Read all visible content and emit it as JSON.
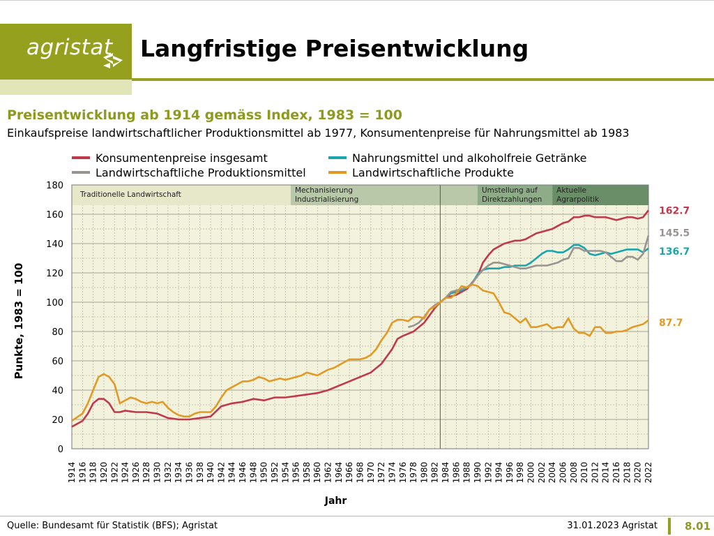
{
  "brand": {
    "name": "agristat",
    "color": "#95a01f"
  },
  "header": {
    "title": "Langfristige Preisentwicklung",
    "subtitle": "Preisentwicklung ab 1914 gemäss Index, 1983 = 100",
    "subtitle2": "Einkaufspreise landwirtschaftlicher Produktionsmittel ab 1977, Konsumentenpreise für Nahrungsmittel ab 1983"
  },
  "footer": {
    "source": "Quelle: Bundesamt für Statistik (BFS); Agristat",
    "date": "31.01.2023 Agristat",
    "page": "8.01"
  },
  "chart_data": {
    "type": "line",
    "xlabel": "Jahr",
    "ylabel": "Punkte, 1983 = 100",
    "xlim": [
      1914,
      2022
    ],
    "ylim": [
      0,
      180
    ],
    "yticks": [
      0,
      20,
      40,
      60,
      80,
      100,
      120,
      140,
      160,
      180
    ],
    "grid": true,
    "legend_position": "top",
    "reference_year": 1983,
    "periods": [
      {
        "label": "Traditionelle Landwirtschaft",
        "start": 1914,
        "end": 1955,
        "color": "#e6e8c9"
      },
      {
        "label": "Mechanisierung Industrialisierung",
        "start": 1955,
        "end": 1990,
        "color": "#b8c8a8"
      },
      {
        "label": "Umstellung auf Direktzahlungen",
        "start": 1990,
        "end": 2004,
        "color": "#8fac88"
      },
      {
        "label": "Aktuelle Agrarpolitik",
        "start": 2004,
        "end": 2022,
        "color": "#6a8f68"
      }
    ],
    "series": [
      {
        "name": "Konsumentenpreise insgesamt",
        "color": "#c0394b",
        "end_label": "162.7",
        "points": [
          [
            1914,
            15
          ],
          [
            1916,
            19
          ],
          [
            1917,
            24
          ],
          [
            1918,
            31
          ],
          [
            1919,
            34
          ],
          [
            1920,
            34
          ],
          [
            1921,
            31
          ],
          [
            1922,
            25
          ],
          [
            1923,
            25
          ],
          [
            1924,
            26
          ],
          [
            1926,
            25
          ],
          [
            1928,
            25
          ],
          [
            1930,
            24
          ],
          [
            1932,
            21
          ],
          [
            1934,
            20
          ],
          [
            1936,
            20
          ],
          [
            1938,
            21
          ],
          [
            1940,
            22
          ],
          [
            1942,
            29
          ],
          [
            1944,
            31
          ],
          [
            1946,
            32
          ],
          [
            1948,
            34
          ],
          [
            1950,
            33
          ],
          [
            1952,
            35
          ],
          [
            1954,
            35
          ],
          [
            1956,
            36
          ],
          [
            1958,
            37
          ],
          [
            1960,
            38
          ],
          [
            1962,
            40
          ],
          [
            1964,
            43
          ],
          [
            1966,
            46
          ],
          [
            1968,
            49
          ],
          [
            1970,
            52
          ],
          [
            1972,
            58
          ],
          [
            1974,
            68
          ],
          [
            1975,
            75
          ],
          [
            1976,
            77
          ],
          [
            1978,
            80
          ],
          [
            1980,
            86
          ],
          [
            1982,
            96
          ],
          [
            1983,
            100
          ],
          [
            1984,
            103
          ],
          [
            1986,
            105
          ],
          [
            1988,
            109
          ],
          [
            1990,
            118
          ],
          [
            1991,
            127
          ],
          [
            1992,
            132
          ],
          [
            1993,
            136
          ],
          [
            1994,
            138
          ],
          [
            1995,
            140
          ],
          [
            1996,
            141
          ],
          [
            1997,
            142
          ],
          [
            1998,
            142
          ],
          [
            1999,
            143
          ],
          [
            2000,
            145
          ],
          [
            2001,
            147
          ],
          [
            2002,
            148
          ],
          [
            2003,
            149
          ],
          [
            2004,
            150
          ],
          [
            2005,
            152
          ],
          [
            2006,
            154
          ],
          [
            2007,
            155
          ],
          [
            2008,
            158
          ],
          [
            2009,
            158
          ],
          [
            2010,
            159
          ],
          [
            2011,
            159
          ],
          [
            2012,
            158
          ],
          [
            2013,
            158
          ],
          [
            2014,
            158
          ],
          [
            2015,
            157
          ],
          [
            2016,
            156
          ],
          [
            2017,
            157
          ],
          [
            2018,
            158
          ],
          [
            2019,
            158
          ],
          [
            2020,
            157
          ],
          [
            2021,
            158
          ],
          [
            2022,
            162.7
          ]
        ]
      },
      {
        "name": "Nahrungsmittel und alkoholfreie Getränke",
        "color": "#1aa5ad",
        "end_label": "136.7",
        "points": [
          [
            1983,
            100
          ],
          [
            1984,
            103
          ],
          [
            1985,
            106
          ],
          [
            1986,
            107
          ],
          [
            1987,
            108
          ],
          [
            1988,
            110
          ],
          [
            1989,
            113
          ],
          [
            1990,
            119
          ],
          [
            1991,
            122
          ],
          [
            1992,
            123
          ],
          [
            1993,
            123
          ],
          [
            1994,
            123
          ],
          [
            1995,
            124
          ],
          [
            1996,
            124
          ],
          [
            1997,
            125
          ],
          [
            1998,
            125
          ],
          [
            1999,
            125
          ],
          [
            2000,
            127
          ],
          [
            2001,
            130
          ],
          [
            2002,
            133
          ],
          [
            2003,
            135
          ],
          [
            2004,
            135
          ],
          [
            2005,
            134
          ],
          [
            2006,
            134
          ],
          [
            2007,
            136
          ],
          [
            2008,
            139
          ],
          [
            2009,
            139
          ],
          [
            2010,
            137
          ],
          [
            2011,
            133
          ],
          [
            2012,
            132
          ],
          [
            2013,
            133
          ],
          [
            2014,
            134
          ],
          [
            2015,
            133
          ],
          [
            2016,
            134
          ],
          [
            2017,
            135
          ],
          [
            2018,
            136
          ],
          [
            2019,
            136
          ],
          [
            2020,
            136
          ],
          [
            2021,
            134
          ],
          [
            2022,
            136.7
          ]
        ]
      },
      {
        "name": "Landwirtschaftliche Produktionsmittel",
        "color": "#999392",
        "end_label": "145.5",
        "points": [
          [
            1977,
            83
          ],
          [
            1978,
            84
          ],
          [
            1979,
            86
          ],
          [
            1980,
            90
          ],
          [
            1981,
            95
          ],
          [
            1982,
            98
          ],
          [
            1983,
            100
          ],
          [
            1984,
            103
          ],
          [
            1985,
            107
          ],
          [
            1986,
            108
          ],
          [
            1987,
            109
          ],
          [
            1988,
            110
          ],
          [
            1989,
            113
          ],
          [
            1990,
            118
          ],
          [
            1991,
            122
          ],
          [
            1992,
            125
          ],
          [
            1993,
            127
          ],
          [
            1994,
            127
          ],
          [
            1995,
            126
          ],
          [
            1996,
            125
          ],
          [
            1997,
            124
          ],
          [
            1998,
            123
          ],
          [
            1999,
            123
          ],
          [
            2000,
            124
          ],
          [
            2001,
            125
          ],
          [
            2002,
            125
          ],
          [
            2003,
            125
          ],
          [
            2004,
            126
          ],
          [
            2005,
            127
          ],
          [
            2006,
            129
          ],
          [
            2007,
            130
          ],
          [
            2008,
            137
          ],
          [
            2009,
            137
          ],
          [
            2010,
            135
          ],
          [
            2011,
            135
          ],
          [
            2012,
            135
          ],
          [
            2013,
            135
          ],
          [
            2014,
            134
          ],
          [
            2015,
            131
          ],
          [
            2016,
            128
          ],
          [
            2017,
            128
          ],
          [
            2018,
            131
          ],
          [
            2019,
            131
          ],
          [
            2020,
            129
          ],
          [
            2021,
            133
          ],
          [
            2022,
            145.5
          ]
        ]
      },
      {
        "name": "Landwirtschaftliche Produkte",
        "color": "#e09a25",
        "end_label": "87.7",
        "points": [
          [
            1914,
            19
          ],
          [
            1916,
            24
          ],
          [
            1917,
            31
          ],
          [
            1918,
            40
          ],
          [
            1919,
            49
          ],
          [
            1920,
            51
          ],
          [
            1921,
            49
          ],
          [
            1922,
            44
          ],
          [
            1923,
            31
          ],
          [
            1924,
            33
          ],
          [
            1925,
            35
          ],
          [
            1926,
            34
          ],
          [
            1927,
            32
          ],
          [
            1928,
            31
          ],
          [
            1929,
            32
          ],
          [
            1930,
            31
          ],
          [
            1931,
            32
          ],
          [
            1932,
            28
          ],
          [
            1933,
            25
          ],
          [
            1934,
            23
          ],
          [
            1935,
            22
          ],
          [
            1936,
            22
          ],
          [
            1937,
            24
          ],
          [
            1938,
            25
          ],
          [
            1939,
            25
          ],
          [
            1940,
            25
          ],
          [
            1941,
            29
          ],
          [
            1942,
            35
          ],
          [
            1943,
            40
          ],
          [
            1944,
            42
          ],
          [
            1945,
            44
          ],
          [
            1946,
            46
          ],
          [
            1947,
            46
          ],
          [
            1948,
            47
          ],
          [
            1949,
            49
          ],
          [
            1950,
            48
          ],
          [
            1951,
            46
          ],
          [
            1952,
            47
          ],
          [
            1953,
            48
          ],
          [
            1954,
            47
          ],
          [
            1955,
            48
          ],
          [
            1956,
            49
          ],
          [
            1957,
            50
          ],
          [
            1958,
            52
          ],
          [
            1959,
            51
          ],
          [
            1960,
            50
          ],
          [
            1961,
            52
          ],
          [
            1962,
            54
          ],
          [
            1963,
            55
          ],
          [
            1964,
            57
          ],
          [
            1965,
            59
          ],
          [
            1966,
            61
          ],
          [
            1967,
            61
          ],
          [
            1968,
            61
          ],
          [
            1969,
            62
          ],
          [
            1970,
            64
          ],
          [
            1971,
            68
          ],
          [
            1972,
            74
          ],
          [
            1973,
            79
          ],
          [
            1974,
            86
          ],
          [
            1975,
            88
          ],
          [
            1976,
            88
          ],
          [
            1977,
            87
          ],
          [
            1978,
            90
          ],
          [
            1979,
            90
          ],
          [
            1980,
            89
          ],
          [
            1981,
            95
          ],
          [
            1982,
            97
          ],
          [
            1983,
            100
          ],
          [
            1984,
            103
          ],
          [
            1985,
            103
          ],
          [
            1986,
            106
          ],
          [
            1987,
            111
          ],
          [
            1988,
            110
          ],
          [
            1989,
            112
          ],
          [
            1990,
            111
          ],
          [
            1991,
            108
          ],
          [
            1992,
            107
          ],
          [
            1993,
            106
          ],
          [
            1994,
            100
          ],
          [
            1995,
            93
          ],
          [
            1996,
            92
          ],
          [
            1997,
            89
          ],
          [
            1998,
            86
          ],
          [
            1999,
            89
          ],
          [
            2000,
            83
          ],
          [
            2001,
            83
          ],
          [
            2002,
            84
          ],
          [
            2003,
            85
          ],
          [
            2004,
            82
          ],
          [
            2005,
            83
          ],
          [
            2006,
            83
          ],
          [
            2007,
            89
          ],
          [
            2008,
            82
          ],
          [
            2009,
            79
          ],
          [
            2010,
            79
          ],
          [
            2011,
            77
          ],
          [
            2012,
            83
          ],
          [
            2013,
            83
          ],
          [
            2014,
            79
          ],
          [
            2015,
            79
          ],
          [
            2016,
            80
          ],
          [
            2017,
            80
          ],
          [
            2018,
            81
          ],
          [
            2019,
            83
          ],
          [
            2020,
            84
          ],
          [
            2021,
            85
          ],
          [
            2022,
            87.7
          ]
        ]
      }
    ]
  }
}
